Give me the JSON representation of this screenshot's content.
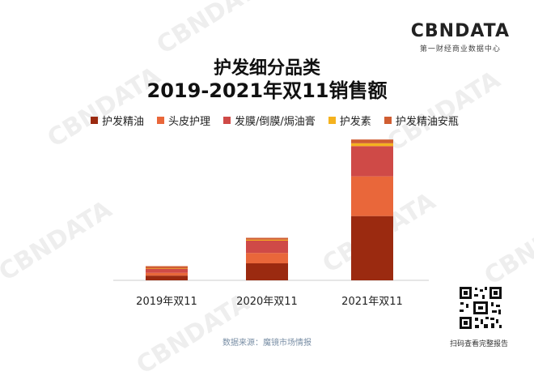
{
  "brand": {
    "logo": "CBNDATA",
    "subtitle": "第一财经商业数据中心"
  },
  "watermark_text": "CBNDATA",
  "qr_caption": "扫码查看完整报告",
  "source_text": "数据来源：魔镜市场情报",
  "chart_data": {
    "type": "bar",
    "stacked": true,
    "title_line1": "护发细分品类",
    "title_line2": "2019-2021年双11销售额",
    "categories": [
      "2019年双11",
      "2020年双11",
      "2021年双11"
    ],
    "series": [
      {
        "name": "护发精油",
        "color": "#9b2a10",
        "values": [
          5,
          18,
          68
        ]
      },
      {
        "name": "头皮护理",
        "color": "#e9673a",
        "values": [
          3,
          11,
          42
        ]
      },
      {
        "name": "发膜/倒膜/焗油膏",
        "color": "#cf4a47",
        "values": [
          4,
          13,
          32
        ]
      },
      {
        "name": "护发素",
        "color": "#f5b21e",
        "values": [
          0.5,
          1,
          3
        ]
      },
      {
        "name": "护发精油安瓶",
        "color": "#d05e32",
        "values": [
          2.5,
          2,
          4
        ]
      }
    ],
    "xlabel": "",
    "ylabel": "",
    "ylim": [
      0,
      150
    ],
    "grid": false,
    "legend_position": "top"
  }
}
